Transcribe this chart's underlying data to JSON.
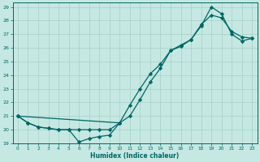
{
  "title": "",
  "xlabel": "Humidex (Indice chaleur)",
  "ylabel": "",
  "xlim": [
    -0.5,
    23.5
  ],
  "ylim": [
    19,
    29.3
  ],
  "xticks": [
    0,
    1,
    2,
    3,
    4,
    5,
    6,
    7,
    8,
    9,
    10,
    11,
    12,
    13,
    14,
    15,
    16,
    17,
    18,
    19,
    20,
    21,
    22,
    23
  ],
  "yticks": [
    19,
    20,
    21,
    22,
    23,
    24,
    25,
    26,
    27,
    28,
    29
  ],
  "background_color": "#c5e8e2",
  "grid_color": "#a8cfc8",
  "line_color": "#006666",
  "line1_x": [
    0,
    1,
    2,
    3,
    4,
    5,
    6,
    7,
    8,
    9,
    10
  ],
  "line1_y": [
    21.0,
    20.5,
    20.2,
    20.1,
    20.0,
    20.0,
    19.1,
    19.35,
    19.5,
    19.6,
    20.5
  ],
  "line2_x": [
    0,
    1,
    2,
    3,
    4,
    5,
    6,
    7,
    8,
    9,
    10,
    11,
    12,
    13,
    14,
    15,
    16,
    17,
    18,
    19,
    20,
    21,
    22,
    23
  ],
  "line2_y": [
    21.0,
    20.5,
    20.2,
    20.1,
    20.0,
    20.0,
    20.0,
    20.0,
    20.0,
    20.0,
    20.5,
    21.0,
    22.2,
    23.5,
    24.5,
    25.8,
    26.2,
    26.6,
    27.7,
    28.4,
    28.2,
    27.2,
    26.8,
    26.7
  ],
  "line3_x": [
    0,
    10,
    11,
    12,
    13,
    14,
    15,
    16,
    17,
    18,
    19,
    20,
    21,
    22,
    23
  ],
  "line3_y": [
    21.0,
    20.5,
    21.8,
    23.0,
    24.1,
    24.8,
    25.8,
    26.1,
    26.6,
    27.6,
    29.0,
    28.5,
    27.0,
    26.5,
    26.7
  ],
  "marker": "D",
  "marker_size": 2.2,
  "linewidth": 0.9
}
